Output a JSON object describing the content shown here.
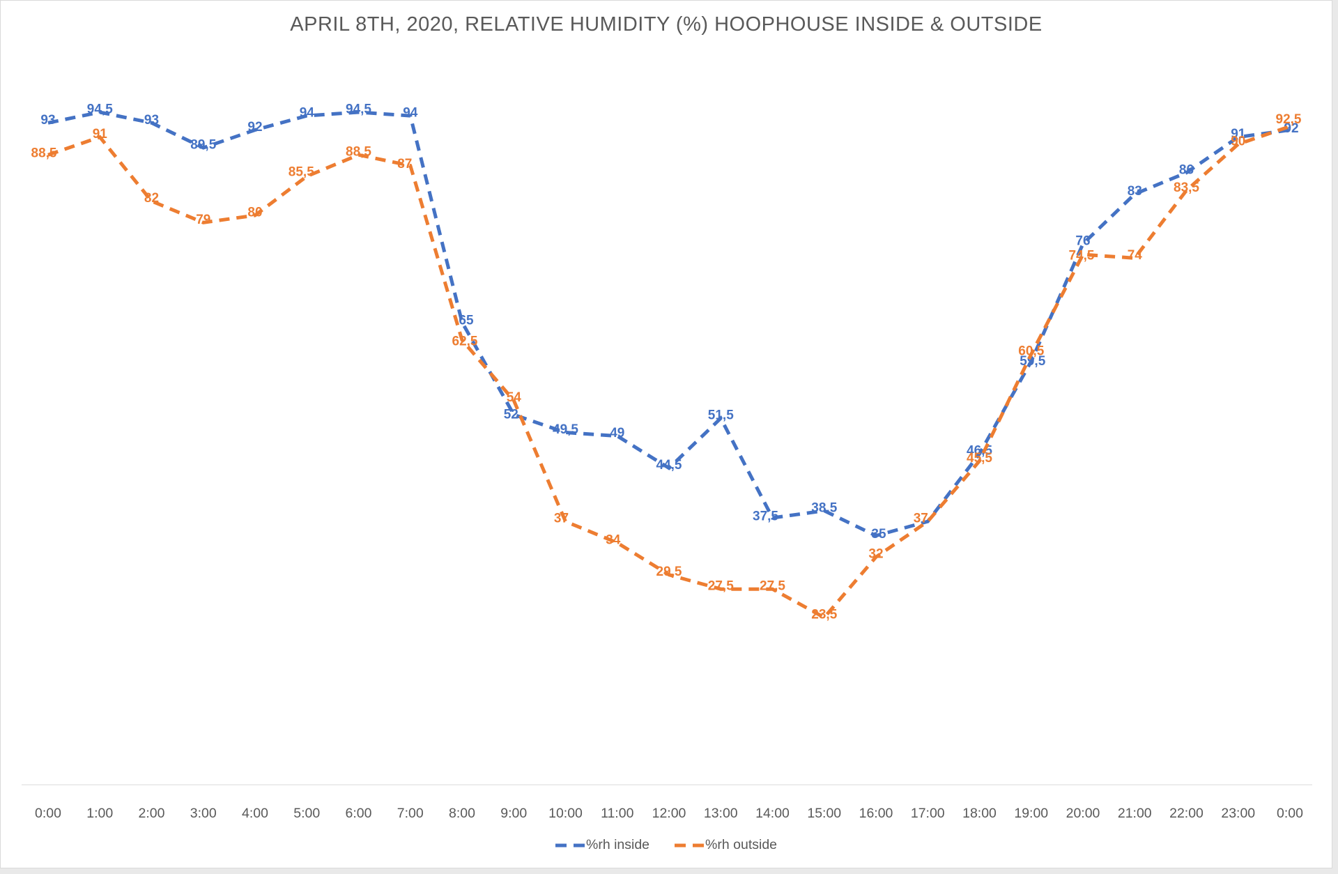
{
  "title": "APRIL 8TH, 2020, RELATIVE HUMIDITY (%) HOOPHOUSE INSIDE & OUTSIDE",
  "colors": {
    "title_text": "#595959",
    "axis_text": "#595959",
    "axis_line": "#d9d9d9",
    "inside_series": "#4472C4",
    "outside_series": "#ED7D31"
  },
  "chart_data": {
    "type": "line",
    "title": "APRIL 8TH, 2020, RELATIVE HUMIDITY (%) HOOPHOUSE INSIDE & OUTSIDE",
    "xlabel": "",
    "ylabel": "",
    "ylim": [
      0,
      100
    ],
    "grid": false,
    "legend_position": "bottom",
    "line_style": "dashed",
    "x_labels": [
      "0:00",
      "1:00",
      "2:00",
      "3:00",
      "4:00",
      "5:00",
      "6:00",
      "7:00",
      "8:00",
      "9:00",
      "10:00",
      "11:00",
      "12:00",
      "13:00",
      "14:00",
      "15:00",
      "16:00",
      "17:00",
      "18:00",
      "19:00",
      "20:00",
      "21:00",
      "22:00",
      "23:00",
      "0:00"
    ],
    "series": [
      {
        "name": "%rh inside",
        "color": "#4472C4",
        "values": [
          93,
          94.5,
          93,
          89.5,
          92,
          94,
          94.5,
          94,
          65,
          52,
          49.5,
          49,
          44.5,
          51.5,
          37.5,
          38.5,
          35,
          37,
          46.5,
          59.5,
          76,
          83,
          86,
          91,
          92
        ],
        "labels": [
          "93",
          "94,5",
          "93",
          "89,5",
          "92",
          "94",
          "94,5",
          "94",
          "65",
          "52",
          "49,5",
          "49",
          "44,5",
          "51,5",
          "37,5",
          "38,5",
          "35",
          "",
          "46,5",
          "59,5",
          "76",
          "83",
          "86",
          "91",
          "92"
        ],
        "label_offsets": {
          "8": [
            6,
            -2
          ],
          "9": [
            -4,
            0
          ],
          "14": [
            -10,
            -2
          ],
          "16": [
            4,
            -2
          ],
          "19": [
            2,
            0
          ],
          "24": [
            2,
            -2
          ]
        }
      },
      {
        "name": "%rh outside",
        "color": "#ED7D31",
        "values": [
          88.5,
          91,
          82,
          79,
          80,
          85.5,
          88.5,
          87,
          62.5,
          54,
          37,
          34,
          29.5,
          27.5,
          27.5,
          23.5,
          32,
          37,
          45.5,
          60.5,
          74.5,
          74,
          83.5,
          90,
          92.5
        ],
        "labels": [
          "88,5",
          "91",
          "82",
          "79",
          "80",
          "85,5",
          "88,5",
          "87",
          "62,5",
          "54",
          "37",
          "34",
          "29,5",
          "27,5",
          "27,5",
          "23,5",
          "32",
          "37",
          "45,5",
          "60,5",
          "74,5",
          "74",
          "83,5",
          "90",
          "92,5"
        ],
        "label_offsets": {
          "0": [
            -6,
            -2
          ],
          "5": [
            -8,
            -6
          ],
          "7": [
            -8,
            -2
          ],
          "8": [
            4,
            2
          ],
          "10": [
            -6,
            -4
          ],
          "11": [
            -6,
            -4
          ],
          "17": [
            -10,
            -4
          ],
          "20": [
            -2,
            2
          ],
          "24": [
            -2,
            -10
          ]
        }
      }
    ]
  },
  "legend": {
    "items": [
      "%rh inside",
      "%rh outside"
    ]
  }
}
